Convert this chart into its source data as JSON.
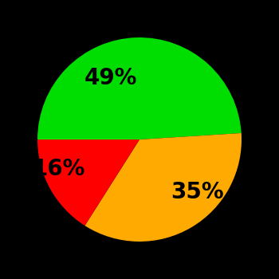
{
  "slices": [
    49,
    35,
    16
  ],
  "colors": [
    "#00dd00",
    "#ffaa00",
    "#ff0000"
  ],
  "labels": [
    "49%",
    "35%",
    "16%"
  ],
  "background_color": "#000000",
  "startangle": 180,
  "figsize": [
    3.5,
    3.5
  ],
  "dpi": 100,
  "label_fontsize": 20
}
